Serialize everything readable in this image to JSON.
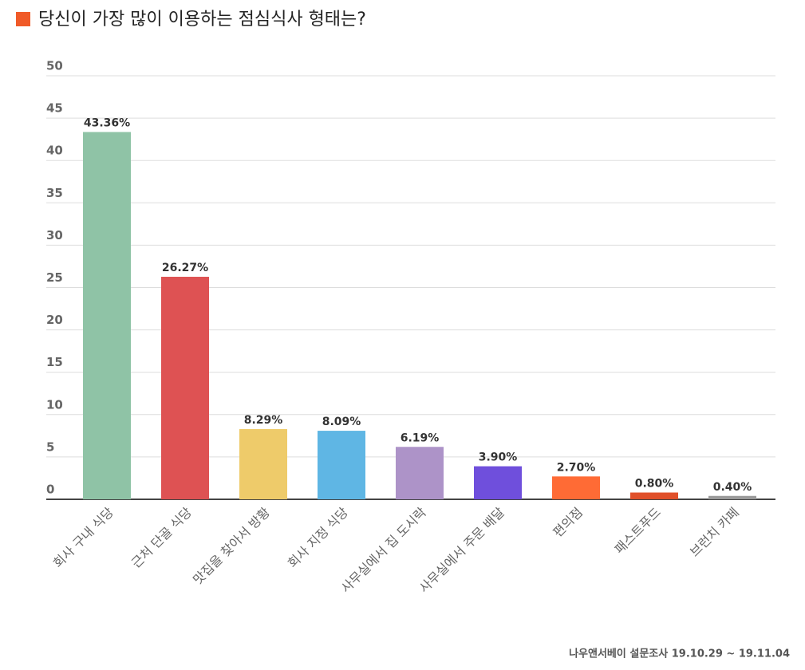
{
  "chart_data": {
    "type": "bar",
    "title": "당신이 가장 많이 이용하는 점심식사 형태는?",
    "source": "나우앤서베이 설문조사 19.10.29 ~ 19.11.04",
    "categories": [
      "회사 구내 식당",
      "근처 단골 식당",
      "맛집을 찾아서 방황",
      "회사 지정 식당",
      "사무실에서 집 도시락",
      "사무실에서 주문 배달",
      "편의점",
      "패스트푸드",
      "브런치 카페"
    ],
    "values": [
      43.36,
      26.27,
      8.29,
      8.09,
      6.19,
      3.9,
      2.7,
      0.8,
      0.4
    ],
    "value_labels": [
      "43.36%",
      "26.27%",
      "8.29%",
      "8.09%",
      "6.19%",
      "3.90%",
      "2.70%",
      "0.80%",
      "0.40%"
    ],
    "colors": [
      "#8fc3a6",
      "#de5253",
      "#eecb6a",
      "#5fb6e4",
      "#ad93c8",
      "#6f4fdc",
      "#ff6b35",
      "#e0502a",
      "#9a9a9a"
    ],
    "ylim": [
      0,
      50
    ],
    "yticks": [
      0,
      5,
      10,
      15,
      20,
      25,
      30,
      35,
      40,
      45,
      50
    ],
    "grid": true
  }
}
